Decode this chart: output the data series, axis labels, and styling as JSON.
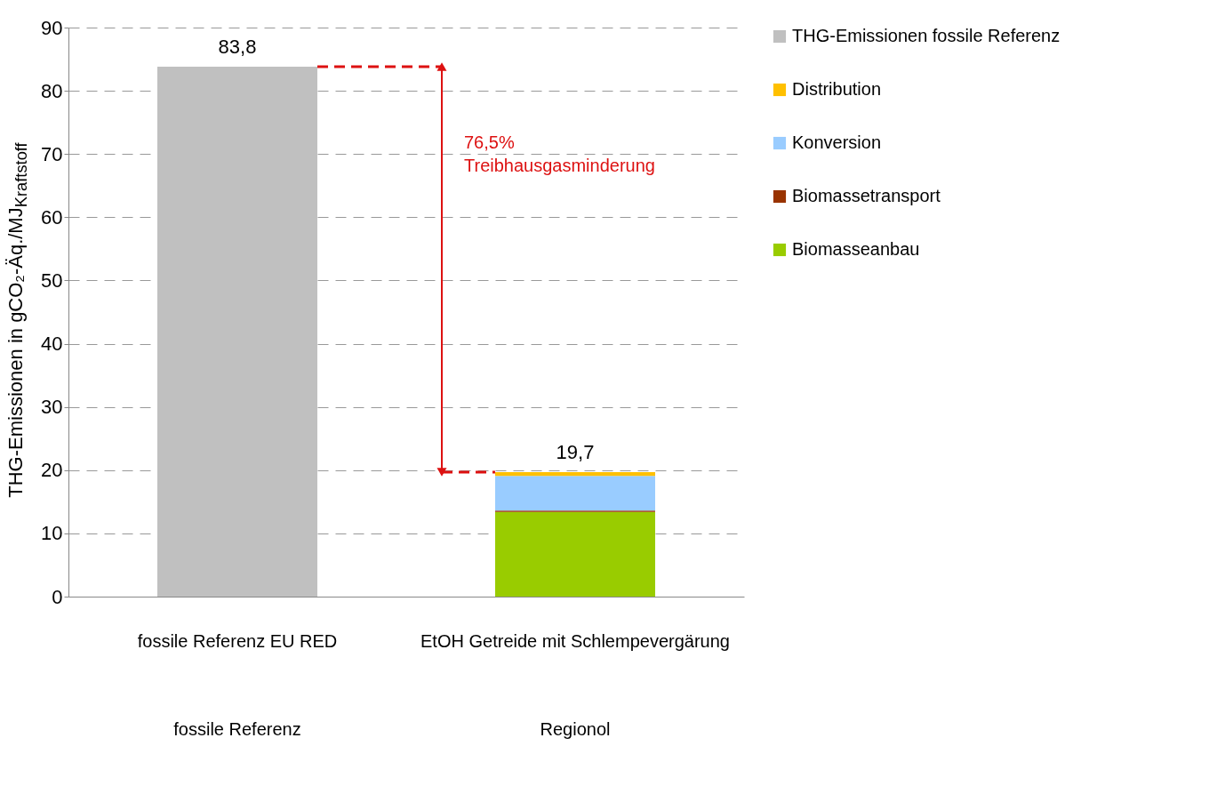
{
  "chart_data": {
    "type": "bar",
    "stacked": true,
    "ylabel": "THG-Emissionen in gCO₂-Äq./MJ$_{Kraftstoff}$",
    "categories": [
      "fossile Referenz EU RED",
      "EtOH Getreide mit Schlempevergärung"
    ],
    "series": [
      {
        "name": "THG-Emissionen fossile Referenz",
        "color": "#c0c0c0",
        "values": [
          83.8,
          null
        ]
      },
      {
        "name": "Biomasseanbau",
        "color": "#99cc00",
        "values": [
          null,
          13.4
        ]
      },
      {
        "name": "Biomassetransport",
        "color": "#993300",
        "values": [
          null,
          0.2
        ]
      },
      {
        "name": "Konversion",
        "color": "#99ccff",
        "values": [
          null,
          5.5
        ]
      },
      {
        "name": "Distribution",
        "color": "#ffc000",
        "values": [
          null,
          0.6
        ]
      }
    ],
    "totals": [
      "83,8",
      "19,7"
    ],
    "annotations": [
      "76,5%\nTreibhausgasminderung",
      "fossile Referenz",
      "Regionol"
    ],
    "ylim": [
      0,
      90
    ],
    "yticks": [
      0,
      10,
      20,
      30,
      40,
      50,
      60,
      70,
      80,
      90
    ],
    "grid": "y",
    "legend": "right"
  }
}
